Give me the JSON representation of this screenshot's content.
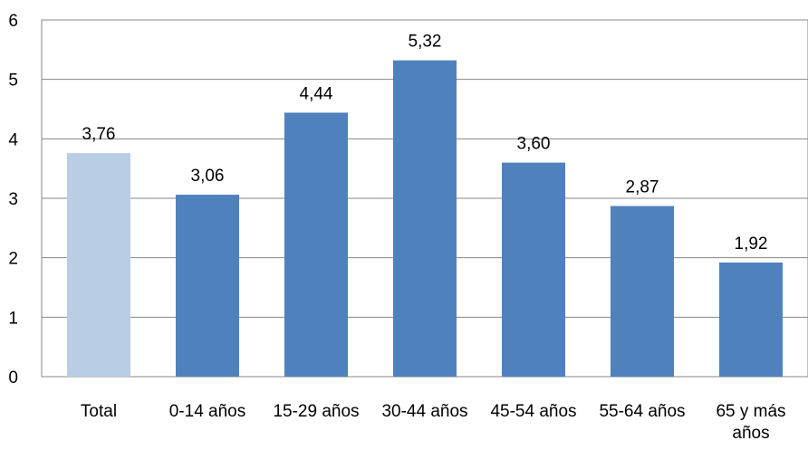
{
  "chart_data": {
    "type": "bar",
    "categories": [
      "Total",
      "0-14 años",
      "15-29 años",
      "30-44 años",
      "45-54 años",
      "55-64 años",
      "65 y más años"
    ],
    "values": [
      3.76,
      3.06,
      4.44,
      5.32,
      3.6,
      2.87,
      1.92
    ],
    "value_labels": [
      "3,76",
      "3,06",
      "4,44",
      "5,32",
      "3,60",
      "2,87",
      "1,92"
    ],
    "ylim": [
      0,
      6
    ],
    "yticks": [
      "0",
      "1",
      "2",
      "3",
      "4",
      "5",
      "6"
    ],
    "grid": true,
    "legend": "none",
    "colors": {
      "highlight_bar": "#b9cde5",
      "bar": "#4f81bd",
      "grid": "#878787",
      "frame": "#878787"
    }
  }
}
